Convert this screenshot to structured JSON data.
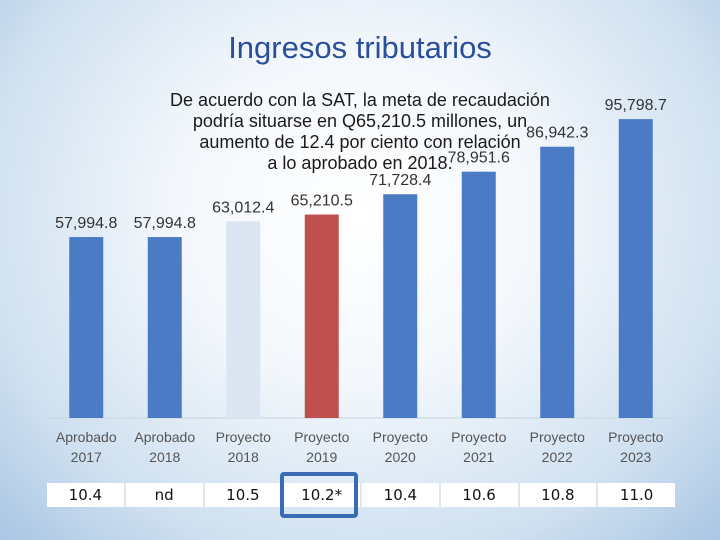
{
  "title": "Ingresos tributarios",
  "subtitle": "De acuerdo con la SAT, la meta de recaudación\npodría situarse en Q65,210.5 millones, un\naumento de 12.4 por ciento con relación\na lo aprobado en 2018.",
  "chart_data": {
    "type": "bar",
    "categories": [
      [
        "Aprobado",
        "2017"
      ],
      [
        "Aprobado",
        "2018"
      ],
      [
        "Proyecto",
        "2018"
      ],
      [
        "Proyecto",
        "2019"
      ],
      [
        "Proyecto",
        "2020"
      ],
      [
        "Proyecto",
        "2021"
      ],
      [
        "Proyecto",
        "2022"
      ],
      [
        "Proyecto",
        "2023"
      ]
    ],
    "values": [
      57994.8,
      57994.8,
      63012.4,
      65210.5,
      71728.4,
      78951.6,
      86942.3,
      95798.7
    ],
    "value_labels": [
      "57,994.8",
      "57,994.8",
      "63,012.4",
      "65,210.5",
      "71,728.4",
      "78,951.6",
      "86,942.3",
      "95,798.7"
    ],
    "bar_colors": [
      "#4a7bc4",
      "#4a7bc4",
      "#dce6f2",
      "#c0504d",
      "#4a7bc4",
      "#4a7bc4",
      "#4a7bc4",
      "#4a7bc4"
    ],
    "ylim": [
      0,
      100000
    ],
    "grid": false
  },
  "table": {
    "values": [
      "10.4",
      "nd",
      "10.5",
      "10.2*",
      "10.4",
      "10.6",
      "10.8",
      "11.0"
    ],
    "highlighted": "10.2*"
  },
  "colors": {
    "title": "#2a4f9a",
    "bar_main": "#4a7bc4",
    "bar_highlight": "#c0504d",
    "bar_light": "#dce6f2",
    "frame": "#3a6cb4"
  }
}
